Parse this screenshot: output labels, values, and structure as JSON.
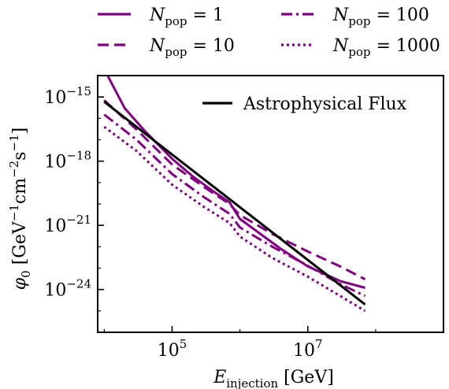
{
  "chart_data": {
    "type": "line",
    "xlabel": "E_injection [GeV]",
    "ylabel": "φ0 [GeV⁻¹cm⁻²s⁻¹]",
    "xscale": "log",
    "yscale": "log",
    "xlim": [
      8000,
      1000000000
    ],
    "ylim": [
      1e-26,
      1e-14
    ],
    "x_ticks": [
      {
        "value": 100000,
        "base": "10",
        "exp": "5"
      },
      {
        "value": 10000000,
        "base": "10",
        "exp": "7"
      }
    ],
    "y_ticks": [
      {
        "value": 1e-15,
        "base": "10",
        "exp": "−15"
      },
      {
        "value": 1e-18,
        "base": "10",
        "exp": "−18"
      },
      {
        "value": 1e-21,
        "base": "10",
        "exp": "−21"
      },
      {
        "value": 1e-24,
        "base": "10",
        "exp": "−24"
      }
    ],
    "legend_top": {
      "placement": "above plot",
      "entries": [
        {
          "label": "N_pop = 1",
          "style": "solid"
        },
        {
          "label": "N_pop = 100",
          "style": "dashdot"
        },
        {
          "label": "N_pop = 10",
          "style": "dashed"
        },
        {
          "label": "N_pop = 1000",
          "style": "dotted"
        }
      ]
    },
    "legend_inner": {
      "placement": "upper-right",
      "label": "Astrophysical Flux"
    },
    "series": [
      {
        "name": "N_pop = 1",
        "color": "#800080",
        "style": "solid",
        "width": 3,
        "x": [
          10000,
          20000,
          40000,
          100000,
          200000,
          400000,
          700000,
          1000000,
          2000000,
          4000000,
          10000000,
          30000000,
          70000000
        ],
        "y": [
          2e-14,
          3e-16,
          2.5e-17,
          1.3e-18,
          2e-19,
          4e-20,
          1.2e-20,
          2e-21,
          4e-22,
          8e-23,
          1.2e-23,
          2.5e-24,
          1.2e-24
        ]
      },
      {
        "name": "N_pop = 10",
        "color": "#800080",
        "style": "dashed",
        "width": 3,
        "x": [
          10000,
          30000,
          100000,
          300000,
          700000,
          1000000,
          3000000,
          10000000,
          30000000,
          70000000
        ],
        "y": [
          7e-16,
          3e-17,
          7e-19,
          6e-20,
          1e-20,
          3e-21,
          4e-22,
          6e-23,
          1.2e-23,
          3e-24
        ]
      },
      {
        "name": "N_pop = 100",
        "color": "#800080",
        "style": "dashdot",
        "width": 3,
        "x": [
          10000,
          30000,
          100000,
          300000,
          700000,
          1000000,
          3000000,
          10000000,
          30000000,
          70000000
        ],
        "y": [
          1.5e-16,
          1e-17,
          2.5e-19,
          2e-20,
          3.5e-21,
          8e-22,
          1e-22,
          1.3e-23,
          1.8e-24,
          5e-25
        ]
      },
      {
        "name": "N_pop = 1000",
        "color": "#800080",
        "style": "dotted",
        "width": 3,
        "x": [
          10000,
          30000,
          100000,
          300000,
          700000,
          1000000,
          3000000,
          10000000,
          30000000,
          70000000
        ],
        "y": [
          4e-17,
          3e-18,
          8e-20,
          7e-21,
          1.3e-21,
          3e-22,
          3e-23,
          4e-24,
          5e-25,
          1e-25
        ]
      },
      {
        "name": "Astrophysical Flux",
        "color": "#000000",
        "style": "solid",
        "width": 3,
        "x": [
          10000,
          70000000
        ],
        "y": [
          6e-16,
          2e-25
        ]
      }
    ]
  }
}
